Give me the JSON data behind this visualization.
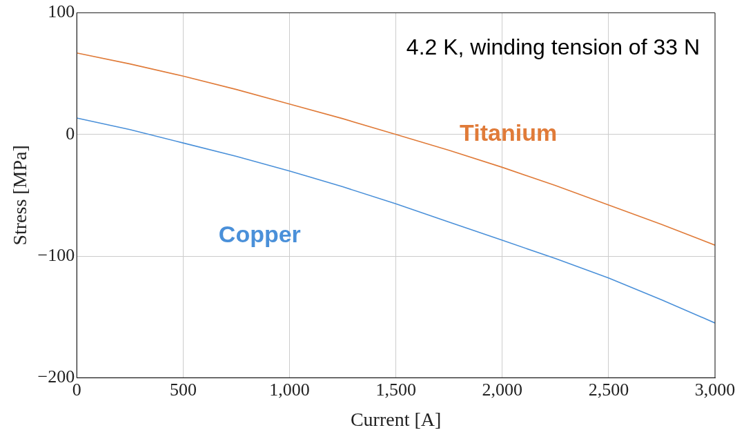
{
  "chart_data": {
    "type": "line",
    "xlabel": "Current [A]",
    "ylabel": "Stress [MPa]",
    "annotations": [
      "4.2 K, winding tension of 33 N"
    ],
    "x": [
      0,
      250,
      500,
      750,
      1000,
      1250,
      1500,
      1750,
      2000,
      2250,
      2500,
      2750,
      3000
    ],
    "series": [
      {
        "name": "Titanium",
        "color": "#e07b39",
        "values": [
          67,
          58,
          48,
          37,
          25,
          13,
          0,
          -13,
          -27,
          -42,
          -58,
          -74,
          -91
        ]
      },
      {
        "name": "Copper",
        "color": "#4a90d9",
        "values": [
          13.5,
          4,
          -7,
          -18,
          -30,
          -43,
          -57,
          -72,
          -87,
          -102,
          -118,
          -136,
          -155
        ]
      }
    ],
    "xlim": [
      0,
      3000
    ],
    "xticks": [
      0,
      500,
      {
        "value": 1000,
        "label": "1,000"
      },
      {
        "value": 1500,
        "label": "1,500"
      },
      {
        "value": 2000,
        "label": "2,000"
      },
      {
        "value": 2500,
        "label": "2,500"
      },
      {
        "value": 3000,
        "label": "3,000"
      }
    ],
    "ylim": [
      -200,
      100
    ],
    "yticks": [
      {
        "value": -200,
        "label": "−200"
      },
      {
        "value": -100,
        "label": "−100"
      },
      0,
      100
    ],
    "grid": true,
    "legend": false,
    "marker": "none",
    "line_style": "solid"
  }
}
